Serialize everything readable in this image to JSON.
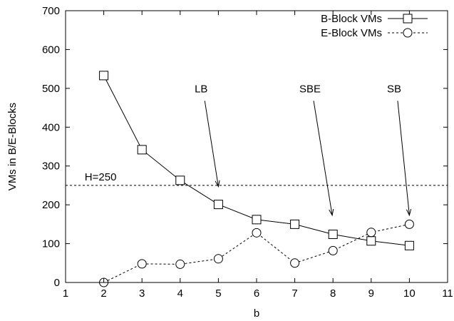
{
  "chart_data": {
    "type": "line",
    "title": "",
    "xlabel": "b",
    "ylabel": "VMs in B/E-Blocks",
    "xlim": [
      1,
      11
    ],
    "ylim": [
      0,
      700
    ],
    "xticks": [
      1,
      2,
      3,
      4,
      5,
      6,
      7,
      8,
      9,
      10,
      11
    ],
    "yticks": [
      0,
      100,
      200,
      300,
      400,
      500,
      600,
      700
    ],
    "grid": false,
    "legend_position": "top-right",
    "series": [
      {
        "name": "B-Block VMs",
        "line": "solid",
        "marker": "square",
        "color": "#000000",
        "x": [
          2,
          3,
          4,
          5,
          6,
          7,
          8,
          9,
          10
        ],
        "y": [
          533,
          342,
          263,
          201,
          162,
          150,
          124,
          107,
          95
        ]
      },
      {
        "name": "E-Block VMs",
        "line": "dashed",
        "marker": "circle",
        "color": "#000000",
        "x": [
          2,
          3,
          4,
          5,
          6,
          7,
          8,
          9,
          10
        ],
        "y": [
          0,
          48,
          47,
          61,
          128,
          50,
          82,
          129,
          150
        ]
      }
    ],
    "reference_lines": [
      {
        "axis": "y",
        "value": 250,
        "label": "H=250",
        "line": "dashed"
      }
    ],
    "annotations": [
      {
        "text": "LB",
        "x": 4.55,
        "y": 490,
        "arrow_to": [
          5.0,
          247
        ]
      },
      {
        "text": "SBE",
        "x": 7.4,
        "y": 490,
        "arrow_to": [
          7.98,
          173
        ]
      },
      {
        "text": "SB",
        "x": 9.6,
        "y": 490,
        "arrow_to": [
          10.0,
          173
        ]
      }
    ]
  }
}
